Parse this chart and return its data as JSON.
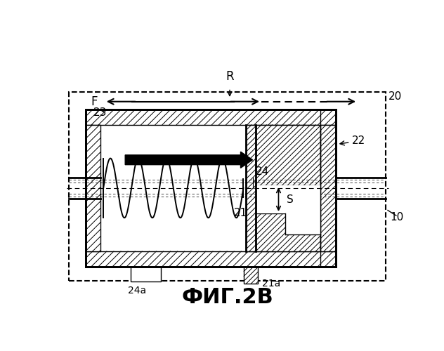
{
  "title": "ФИГ.2В",
  "title_fontsize": 22,
  "background_color": "#ffffff",
  "label_20": "20",
  "label_22": "22",
  "label_23": "23",
  "label_21": "21",
  "label_21a": "21a",
  "label_24": "24",
  "label_24a": "24a",
  "label_10": "10",
  "label_R": "R",
  "label_F": "F",
  "label_S": "S"
}
